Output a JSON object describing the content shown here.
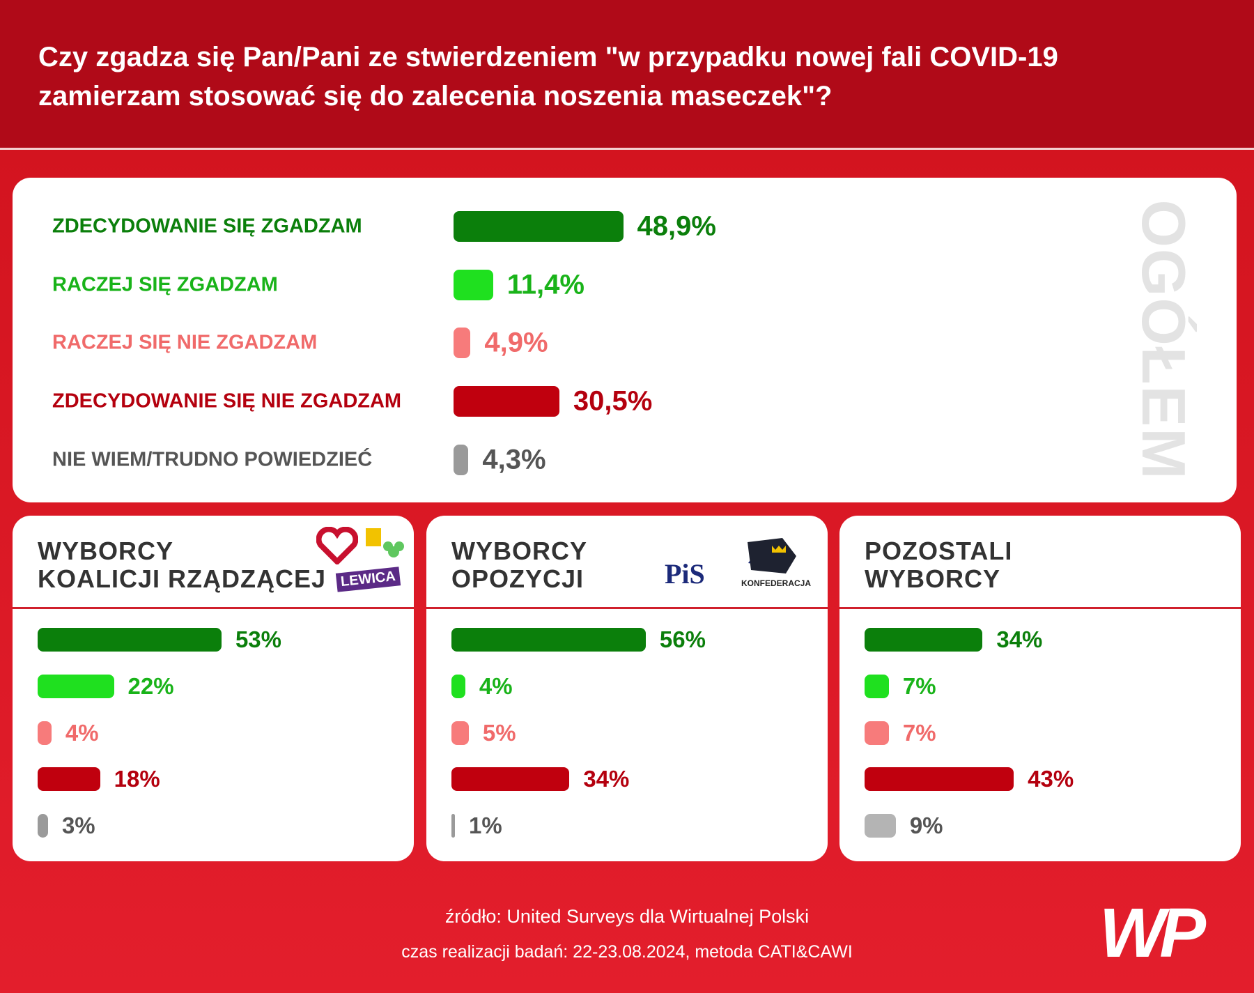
{
  "header": {
    "title": [
      "Czy zgadza się Pan/Pani ze stwierdzeniem \"w przypadku nowej fali COVID-19",
      "zamierzam stosować się do zalecenia noszenia maseczek\"?"
    ]
  },
  "chart_data": [
    {
      "type": "bar",
      "orientation": "horizontal",
      "side_label": "OGÓŁEM",
      "categories": [
        "ZDECYDOWANIE SIĘ ZGADZAM",
        "RACZEJ SIĘ ZGADZAM",
        "RACZEJ SIĘ NIE ZGADZAM",
        "ZDECYDOWANIE SIĘ NIE ZGADZAM",
        "NIE WIEM/TRUDNO POWIEDZIEĆ"
      ],
      "values": [
        48.9,
        11.4,
        4.9,
        30.5,
        4.3
      ],
      "value_labels": [
        "48,9%",
        "11,4%",
        "4,9%",
        "30,5%",
        "4,3%"
      ],
      "colors": [
        "#0b7f0b",
        "#1fe01f",
        "#f77b7b",
        "#c0000e",
        "#9a9a9a"
      ],
      "label_colors": [
        "#0b7f0b",
        "#19b319",
        "#f06a6a",
        "#b4000e",
        "#555555"
      ]
    },
    {
      "type": "bar",
      "orientation": "horizontal",
      "title": [
        "WYBORCY",
        "KOALICJI RZĄDZĄCEJ"
      ],
      "logos": [
        "LEWICA"
      ],
      "values": [
        53,
        22,
        4,
        18,
        3
      ],
      "value_labels": [
        "53%",
        "22%",
        "4%",
        "18%",
        "3%"
      ],
      "colors": [
        "#0b7f0b",
        "#1fe01f",
        "#f77b7b",
        "#c0000e",
        "#9a9a9a"
      ],
      "label_colors": [
        "#0b7f0b",
        "#19b319",
        "#f06a6a",
        "#b4000e",
        "#555555"
      ]
    },
    {
      "type": "bar",
      "orientation": "horizontal",
      "title": [
        "WYBORCY",
        "OPOZYCJI"
      ],
      "logos": [
        "PiS",
        "KONFEDERACJA"
      ],
      "values": [
        56,
        4,
        5,
        34,
        1
      ],
      "value_labels": [
        "56%",
        "4%",
        "5%",
        "34%",
        "1%"
      ],
      "colors": [
        "#0b7f0b",
        "#1fe01f",
        "#f77b7b",
        "#c0000e",
        "#9a9a9a"
      ],
      "label_colors": [
        "#0b7f0b",
        "#19b319",
        "#f06a6a",
        "#b4000e",
        "#555555"
      ]
    },
    {
      "type": "bar",
      "orientation": "horizontal",
      "title": [
        "POZOSTALI",
        "WYBORCY"
      ],
      "values": [
        34,
        7,
        7,
        43,
        9
      ],
      "value_labels": [
        "34%",
        "7%",
        "7%",
        "43%",
        "9%"
      ],
      "colors": [
        "#0b7f0b",
        "#1fe01f",
        "#f77b7b",
        "#c0000e",
        "#b4b4b4"
      ],
      "label_colors": [
        "#0b7f0b",
        "#19b319",
        "#f06a6a",
        "#b4000e",
        "#555555"
      ]
    }
  ],
  "footer": {
    "source": "źródło: United Surveys dla Wirtualnej Polski",
    "method": "czas realizacji badań: 22-23.08.2024, metoda CATI&CAWI",
    "brand": "WP"
  }
}
